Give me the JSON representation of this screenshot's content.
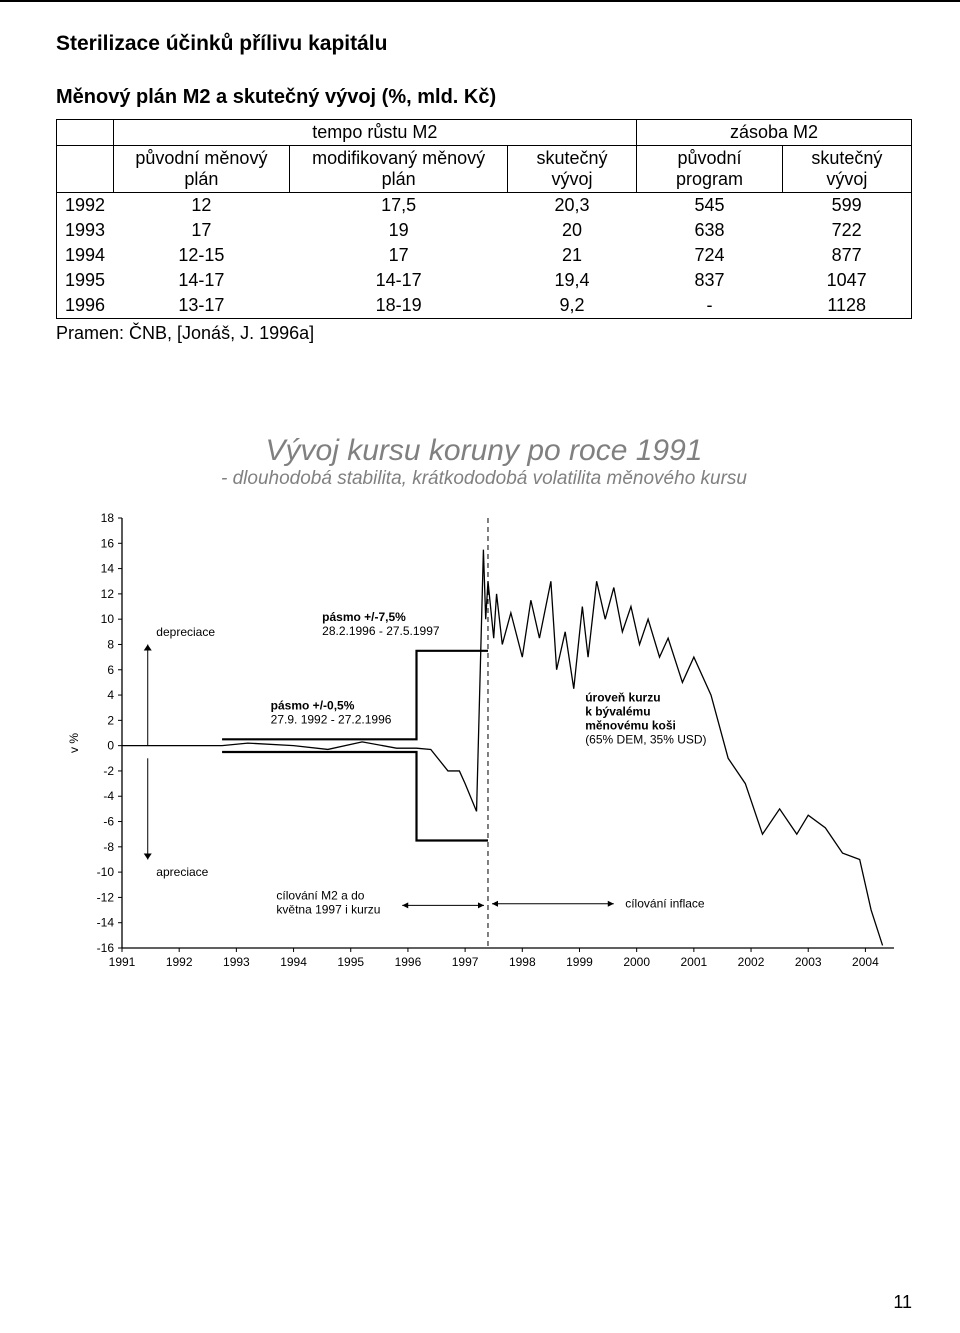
{
  "section_title": "Sterilizace účinků přílivu kapitálu",
  "table_title": "Měnový plán M2 a skutečný vývoj (%, mld. Kč)",
  "table": {
    "group_headers": [
      "",
      "tempo růstu M2",
      "zásoba M2"
    ],
    "sub_headers": [
      "",
      "původní měnový plán",
      "modifikovaný měnový plán",
      "skutečný vývoj",
      "původní program",
      "skutečný vývoj"
    ],
    "rows": [
      [
        "1992",
        "12",
        "17,5",
        "20,3",
        "545",
        "599"
      ],
      [
        "1993",
        "17",
        "19",
        "20",
        "638",
        "722"
      ],
      [
        "1994",
        "12-15",
        "17",
        "21",
        "724",
        "877"
      ],
      [
        "1995",
        "14-17",
        "14-17",
        "19,4",
        "837",
        "1047"
      ],
      [
        "1996",
        "13-17",
        "18-19",
        "9,2",
        "-",
        "1128"
      ]
    ]
  },
  "source_line": "Pramen: ČNB, [Jonáš, J. 1996a]",
  "chart": {
    "title": "Vývoj kursu koruny po roce 1991",
    "subtitle": "- dlouhodobá stabilita, krátkododobá volatilita měnového kursu",
    "y_axis_label": "v %",
    "y_ticks": [
      18,
      16,
      14,
      12,
      10,
      8,
      6,
      4,
      2,
      0,
      -2,
      -4,
      -6,
      -8,
      -10,
      -12,
      -14,
      -16
    ],
    "y_min": -16,
    "y_max": 18,
    "x_ticks": [
      1991,
      1992,
      1993,
      1994,
      1995,
      1996,
      1997,
      1998,
      1999,
      2000,
      2001,
      2002,
      2003,
      2004
    ],
    "x_min": 1991,
    "x_max": 2004.5,
    "colors": {
      "axes": "#000000",
      "grid": "#808080",
      "series": "#000000",
      "band_narrow": "#000000",
      "band_wide": "#000000",
      "vline": "#000000",
      "labels": "#000000",
      "annot": "#000000",
      "arrow": "#000000",
      "bg": "#ffffff"
    },
    "band_narrow": {
      "start": 1992.75,
      "end": 1996.15,
      "half": 0.5
    },
    "band_wide": {
      "start": 1996.15,
      "end": 1997.4,
      "half": 7.5
    },
    "vline_x": 1997.4,
    "annotations": {
      "depreciace": "depreciace",
      "apreciace": "apreciace",
      "band_narrow": [
        "pásmo +/-0,5%",
        "27.9. 1992 - 27.2.1996"
      ],
      "band_wide": [
        "pásmo +/-7,5%",
        "28.2.1996 - 27.5.1997"
      ],
      "cilovani_m2": [
        "cílování M2 a do",
        "května 1997 i kurzu"
      ],
      "uroven": [
        "úroveň kurzu",
        "k bývalému",
        "měnovému koši",
        "(65% DEM, 35% USD)"
      ],
      "cilovani_inflace": "cílování inflace"
    },
    "series": [
      {
        "x": 1991.0,
        "y": 0.0
      },
      {
        "x": 1992.75,
        "y": 0.0
      },
      {
        "x": 1993.2,
        "y": 0.2
      },
      {
        "x": 1994.0,
        "y": 0.0
      },
      {
        "x": 1994.6,
        "y": -0.3
      },
      {
        "x": 1995.2,
        "y": 0.3
      },
      {
        "x": 1995.8,
        "y": -0.2
      },
      {
        "x": 1996.15,
        "y": -0.2
      },
      {
        "x": 1996.4,
        "y": -0.3
      },
      {
        "x": 1996.7,
        "y": -2.0
      },
      {
        "x": 1996.9,
        "y": -2.0
      },
      {
        "x": 1997.0,
        "y": -3.0
      },
      {
        "x": 1997.2,
        "y": -5.2
      },
      {
        "x": 1997.32,
        "y": 15.5
      },
      {
        "x": 1997.36,
        "y": 10.0
      },
      {
        "x": 1997.4,
        "y": 13.0
      },
      {
        "x": 1997.5,
        "y": 8.5
      },
      {
        "x": 1997.55,
        "y": 12.0
      },
      {
        "x": 1997.65,
        "y": 8.0
      },
      {
        "x": 1997.8,
        "y": 10.5
      },
      {
        "x": 1998.0,
        "y": 7.0
      },
      {
        "x": 1998.15,
        "y": 11.5
      },
      {
        "x": 1998.3,
        "y": 8.5
      },
      {
        "x": 1998.5,
        "y": 13.0
      },
      {
        "x": 1998.6,
        "y": 6.0
      },
      {
        "x": 1998.75,
        "y": 9.0
      },
      {
        "x": 1998.9,
        "y": 4.5
      },
      {
        "x": 1999.05,
        "y": 11.0
      },
      {
        "x": 1999.15,
        "y": 7.0
      },
      {
        "x": 1999.3,
        "y": 13.0
      },
      {
        "x": 1999.45,
        "y": 10.0
      },
      {
        "x": 1999.6,
        "y": 12.5
      },
      {
        "x": 1999.75,
        "y": 9.0
      },
      {
        "x": 1999.9,
        "y": 11.0
      },
      {
        "x": 2000.05,
        "y": 8.0
      },
      {
        "x": 2000.2,
        "y": 10.0
      },
      {
        "x": 2000.4,
        "y": 7.0
      },
      {
        "x": 2000.55,
        "y": 8.5
      },
      {
        "x": 2000.8,
        "y": 5.0
      },
      {
        "x": 2001.0,
        "y": 7.0
      },
      {
        "x": 2001.3,
        "y": 4.0
      },
      {
        "x": 2001.6,
        "y": -1.0
      },
      {
        "x": 2001.9,
        "y": -3.0
      },
      {
        "x": 2002.2,
        "y": -7.0
      },
      {
        "x": 2002.5,
        "y": -5.0
      },
      {
        "x": 2002.8,
        "y": -7.0
      },
      {
        "x": 2003.0,
        "y": -5.5
      },
      {
        "x": 2003.3,
        "y": -6.5
      },
      {
        "x": 2003.6,
        "y": -8.5
      },
      {
        "x": 2003.9,
        "y": -9.0
      },
      {
        "x": 2004.1,
        "y": -13.0
      },
      {
        "x": 2004.3,
        "y": -15.8
      }
    ]
  },
  "page_number": "11"
}
